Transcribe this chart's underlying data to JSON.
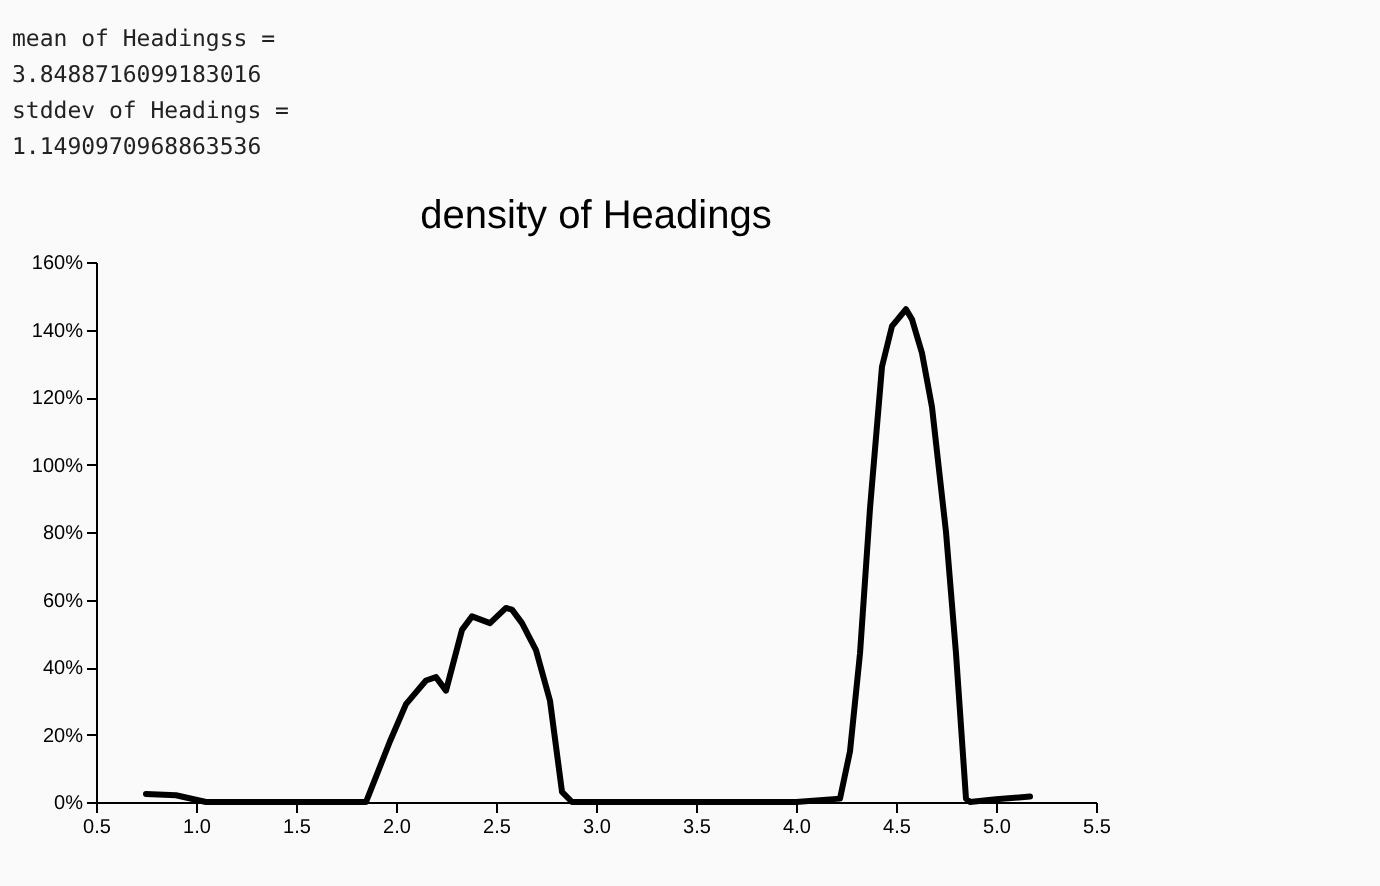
{
  "chart_data": {
    "type": "line",
    "title": "density of Headings",
    "annotations": [
      "mean of Headingss =",
      "3.8488716099183016",
      "stddev of Headings =",
      "1.1490970968863536"
    ],
    "series": [
      {
        "color": "#000000",
        "x": [
          0.75,
          0.9,
          1.05,
          1.5,
          1.85,
          1.88,
          1.97,
          2.05,
          2.15,
          2.2,
          2.25,
          2.33,
          2.38,
          2.47,
          2.55,
          2.58,
          2.63,
          2.7,
          2.77,
          2.83,
          2.88,
          3.5,
          4.0,
          4.22,
          4.27,
          4.32,
          4.37,
          4.43,
          4.48,
          4.55,
          4.58,
          4.63,
          4.68,
          4.75,
          4.8,
          4.85,
          4.87,
          5.0,
          5.17
        ],
        "values": [
          2.4,
          2,
          0,
          0,
          0,
          4.5,
          18,
          29,
          36,
          37,
          33,
          51,
          55,
          53,
          57.5,
          57,
          53,
          45,
          30,
          3,
          0,
          0,
          0,
          1,
          15,
          44,
          87,
          129,
          141,
          146,
          143,
          133,
          117,
          80,
          44,
          1,
          0,
          0.8,
          1.6
        ]
      }
    ],
    "xlim": [
      0.5,
      5.5
    ],
    "xticks": [
      0.5,
      {
        "value": 1,
        "label": "1.0"
      },
      1.5,
      {
        "value": 2,
        "label": "2.0"
      },
      2.5,
      {
        "value": 3,
        "label": "3.0"
      },
      3.5,
      {
        "value": 4,
        "label": "4.0"
      },
      4.5,
      {
        "value": 5,
        "label": "5.0"
      },
      5.5
    ],
    "ylim": [
      0,
      160
    ],
    "yticks": [
      {
        "value": 0,
        "label": "0%"
      },
      {
        "value": 20,
        "label": "20%"
      },
      {
        "value": 40,
        "label": "40%"
      },
      {
        "value": 60,
        "label": "60%"
      },
      {
        "value": 80,
        "label": "80%"
      },
      {
        "value": 100,
        "label": "100%"
      },
      {
        "value": 120,
        "label": "120%"
      },
      {
        "value": 140,
        "label": "140%"
      },
      {
        "value": 160,
        "label": "160%"
      }
    ],
    "grid": false,
    "marker": "none",
    "line_style": "solid"
  }
}
